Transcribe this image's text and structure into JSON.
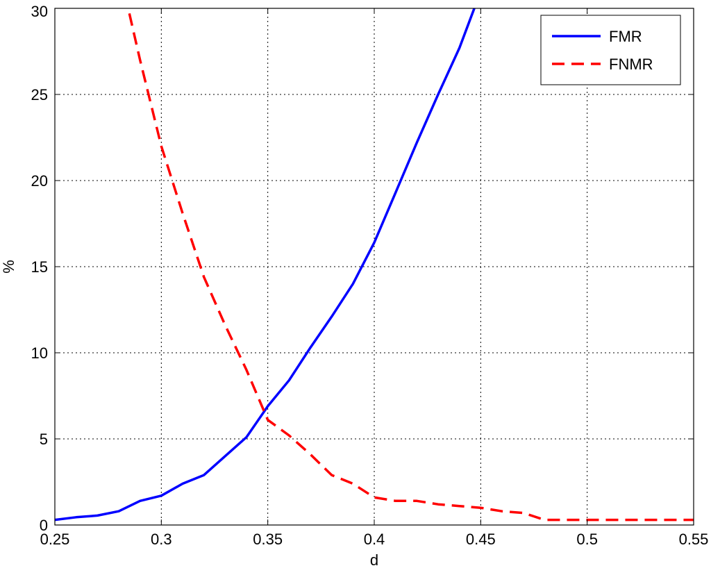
{
  "chart_data": {
    "type": "line",
    "title": "",
    "xlabel": "d",
    "ylabel": "%",
    "xlim": [
      0.25,
      0.55
    ],
    "ylim": [
      0,
      30
    ],
    "xticks": [
      0.25,
      0.3,
      0.35,
      0.4,
      0.45,
      0.5,
      0.55
    ],
    "yticks": [
      0,
      5,
      10,
      15,
      20,
      25,
      30
    ],
    "xtick_labels": [
      "0.25",
      "0.3",
      "0.35",
      "0.4",
      "0.45",
      "0.5",
      "0.55"
    ],
    "ytick_labels": [
      "0",
      "5",
      "10",
      "15",
      "20",
      "25",
      "30"
    ],
    "grid": true,
    "legend_position": "top-right",
    "series": [
      {
        "name": "FMR",
        "color": "#0000ff",
        "style": "solid",
        "x": [
          0.25,
          0.26,
          0.27,
          0.28,
          0.29,
          0.3,
          0.31,
          0.32,
          0.33,
          0.34,
          0.35,
          0.36,
          0.37,
          0.38,
          0.39,
          0.4,
          0.41,
          0.42,
          0.43,
          0.44,
          0.447
        ],
        "y": [
          0.3,
          0.45,
          0.55,
          0.8,
          1.4,
          1.7,
          2.4,
          2.9,
          4.0,
          5.1,
          6.9,
          8.4,
          10.3,
          12.1,
          14.0,
          16.4,
          19.3,
          22.2,
          25.0,
          27.7,
          30.0
        ]
      },
      {
        "name": "FNMR",
        "color": "#ff0000",
        "style": "dashed",
        "x": [
          0.285,
          0.29,
          0.3,
          0.31,
          0.32,
          0.33,
          0.34,
          0.35,
          0.36,
          0.37,
          0.38,
          0.39,
          0.4,
          0.41,
          0.42,
          0.43,
          0.44,
          0.45,
          0.46,
          0.47,
          0.48,
          0.49,
          0.5,
          0.51,
          0.52,
          0.53,
          0.54,
          0.55
        ],
        "y": [
          29.7,
          27.0,
          22.0,
          18.1,
          14.4,
          11.6,
          9.0,
          6.1,
          5.2,
          4.1,
          2.9,
          2.4,
          1.6,
          1.4,
          1.4,
          1.2,
          1.1,
          1.0,
          0.8,
          0.7,
          0.3,
          0.3,
          0.3,
          0.3,
          0.3,
          0.3,
          0.3,
          0.3
        ]
      }
    ]
  }
}
